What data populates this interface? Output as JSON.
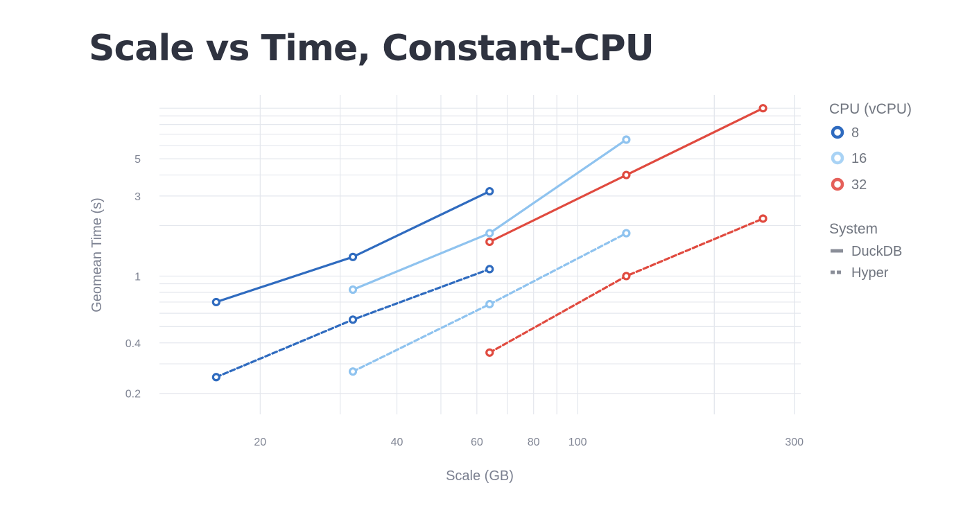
{
  "page": {
    "title": "Scale vs Time, Constant-CPU"
  },
  "chart_data": {
    "type": "line",
    "title": "Scale vs Time, Constant-CPU",
    "xlabel": "Scale (GB)",
    "ylabel": "Geomean Time (s)",
    "x_scale": "log",
    "y_scale": "log",
    "xlim": [
      12,
      310
    ],
    "ylim": [
      0.15,
      12
    ],
    "x_ticks": [
      20,
      40,
      60,
      80,
      100,
      300
    ],
    "y_ticks": [
      0.2,
      0.4,
      1,
      3,
      5
    ],
    "x_tick_labels": [
      "20",
      "40",
      "60",
      "80",
      "100",
      "300"
    ],
    "y_tick_labels": [
      "0.2",
      "0.4",
      "1",
      "3",
      "5"
    ],
    "grid": true,
    "legend_position": "right",
    "colors": {
      "8": "#2f6bbf",
      "16": "#8fc3ef",
      "32": "#e04a3f"
    },
    "legend": {
      "cpu_title": "CPU (vCPU)",
      "cpu_items": [
        {
          "label": "8",
          "color": "#2f6bbf"
        },
        {
          "label": "16",
          "color": "#a9d3f5"
        },
        {
          "label": "32",
          "color": "#e5605a"
        }
      ],
      "system_title": "System",
      "system_items": [
        {
          "label": "DuckDB",
          "dash": "solid"
        },
        {
          "label": "Hyper",
          "dash": "dashed"
        }
      ]
    },
    "series": [
      {
        "cpu": "8",
        "system": "DuckDB",
        "x": [
          16,
          32,
          64
        ],
        "y": [
          0.7,
          1.3,
          3.2
        ]
      },
      {
        "cpu": "8",
        "system": "Hyper",
        "x": [
          16,
          32,
          64
        ],
        "y": [
          0.25,
          0.55,
          1.1
        ]
      },
      {
        "cpu": "16",
        "system": "DuckDB",
        "x": [
          32,
          64,
          128
        ],
        "y": [
          0.83,
          1.8,
          6.5
        ]
      },
      {
        "cpu": "16",
        "system": "Hyper",
        "x": [
          32,
          64,
          128
        ],
        "y": [
          0.27,
          0.68,
          1.8
        ]
      },
      {
        "cpu": "32",
        "system": "DuckDB",
        "x": [
          64,
          128,
          256
        ],
        "y": [
          1.6,
          4.0,
          10.0
        ]
      },
      {
        "cpu": "32",
        "system": "Hyper",
        "x": [
          64,
          128,
          256
        ],
        "y": [
          0.35,
          1.0,
          2.2
        ]
      }
    ]
  }
}
